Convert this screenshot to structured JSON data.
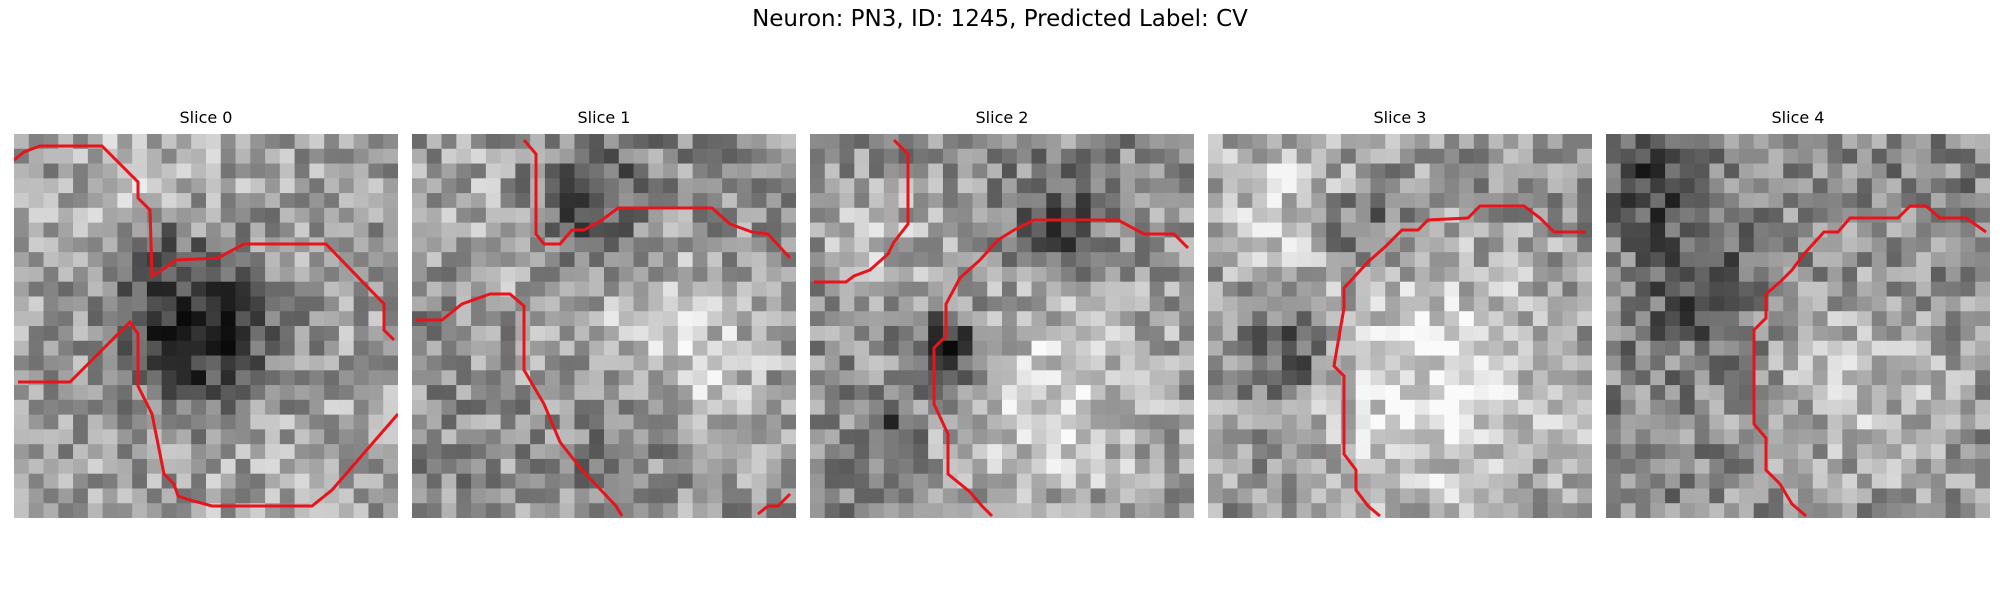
{
  "figure": {
    "suptitle": "Neuron: PN3, ID: 1245, Predicted Label: CV"
  },
  "panels": [
    {
      "title": "Slice 0"
    },
    {
      "title": "Slice 1"
    },
    {
      "title": "Slice 2"
    },
    {
      "title": "Slice 3"
    },
    {
      "title": "Slice 4"
    }
  ],
  "style": {
    "contour_color": "#e8141c",
    "colormap": "gray"
  }
}
